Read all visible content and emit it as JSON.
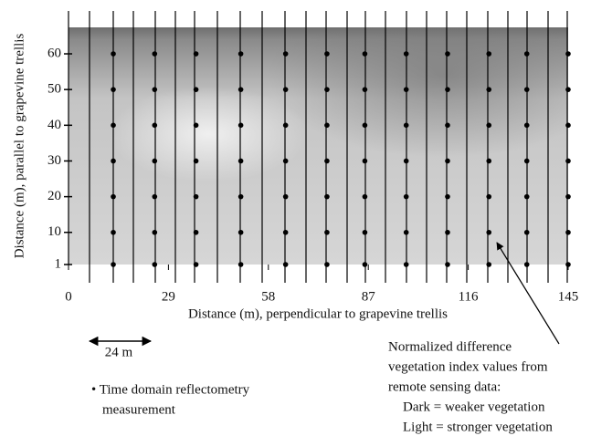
{
  "chart_data": {
    "type": "scatter",
    "xlabel": "Distance (m), perpendicular to grapevine trellis",
    "ylabel": "Distance (m), parallel to grapevine trellis",
    "xlim": [
      0,
      145
    ],
    "ylim": [
      1,
      68
    ],
    "xticks": [
      0,
      29,
      58,
      87,
      116,
      145
    ],
    "yticks": [
      1,
      10,
      20,
      30,
      40,
      50,
      60
    ],
    "color": "#000000",
    "series": [
      {
        "x": [
          13,
          25,
          37,
          50,
          63,
          75,
          86,
          98,
          110,
          122,
          133,
          145,
          13,
          25,
          37,
          50,
          63,
          75,
          86,
          98,
          110,
          122,
          133,
          145,
          13,
          25,
          37,
          50,
          63,
          75,
          86,
          98,
          110,
          122,
          133,
          145,
          13,
          25,
          37,
          50,
          63,
          75,
          86,
          98,
          110,
          122,
          133,
          145,
          13,
          25,
          37,
          50,
          63,
          75,
          86,
          98,
          110,
          122,
          133,
          145,
          13,
          25,
          37,
          50,
          63,
          75,
          86,
          98,
          110,
          122,
          133,
          145,
          13,
          25,
          37,
          50,
          63,
          75,
          86,
          98,
          110,
          122,
          133,
          145
        ],
        "values": [
          60,
          60,
          60,
          60,
          60,
          60,
          60,
          60,
          60,
          60,
          60,
          60,
          50,
          50,
          50,
          50,
          50,
          50,
          50,
          50,
          50,
          50,
          50,
          50,
          40,
          40,
          40,
          40,
          40,
          40,
          40,
          40,
          40,
          40,
          40,
          40,
          30,
          30,
          30,
          30,
          30,
          30,
          30,
          30,
          30,
          30,
          30,
          30,
          20,
          20,
          20,
          20,
          20,
          20,
          20,
          20,
          20,
          20,
          20,
          20,
          10,
          10,
          10,
          10,
          10,
          10,
          10,
          10,
          10,
          10,
          10,
          10,
          1,
          1,
          1,
          1,
          1,
          1,
          1,
          1,
          1,
          1,
          1,
          1
        ]
      }
    ],
    "scale_bar": "24 m",
    "legend": [
      "• Time domain reflectometry",
      "measurement"
    ],
    "annotation": [
      "Normalized difference",
      "vegetation index values from",
      "remote sensing data:",
      "Dark = weaker vegetation",
      "Light = stronger vegetation"
    ]
  }
}
